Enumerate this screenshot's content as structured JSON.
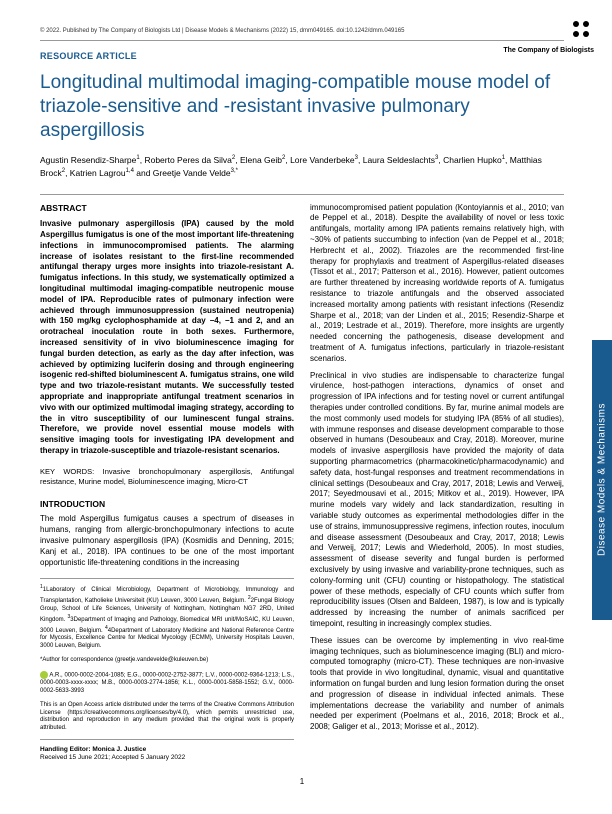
{
  "header": {
    "copyright": "© 2022. Published by The Company of Biologists Ltd | Disease Models & Mechanisms (2022) 15, dmm049165. doi:10.1242/dmm.049165",
    "publisher_name": "The Company of Biologists"
  },
  "article": {
    "section_label": "RESOURCE ARTICLE",
    "title": "Longitudinal multimodal imaging-compatible mouse model of triazole-sensitive and -resistant invasive pulmonary aspergillosis",
    "authors_html": "Agustin Resendiz-Sharpe<sup>1</sup>, Roberto Peres da Silva<sup>2</sup>, Elena Geib<sup>2</sup>, Lore Vanderbeke<sup>3</sup>, Laura Seldeslachts<sup>3</sup>, Charlien Hupko<sup>1</sup>, Matthias Brock<sup>2</sup>, Katrien Lagrou<sup>1,4</sup> and Greetje Vande Velde<sup>3,*</sup>"
  },
  "abstract": {
    "heading": "ABSTRACT",
    "body": "Invasive pulmonary aspergillosis (IPA) caused by the mold Aspergillus fumigatus is one of the most important life-threatening infections in immunocompromised patients. The alarming increase of isolates resistant to the first-line recommended antifungal therapy urges more insights into triazole-resistant A. fumigatus infections. In this study, we systematically optimized a longitudinal multimodal imaging-compatible neutropenic mouse model of IPA. Reproducible rates of pulmonary infection were achieved through immunosuppression (sustained neutropenia) with 150 mg/kg cyclophosphamide at day −4, −1 and 2, and an orotracheal inoculation route in both sexes. Furthermore, increased sensitivity of in vivo bioluminescence imaging for fungal burden detection, as early as the day after infection, was achieved by optimizing luciferin dosing and through engineering isogenic red-shifted bioluminescent A. fumigatus strains, one wild type and two triazole-resistant mutants. We successfully tested appropriate and inappropriate antifungal treatment scenarios in vivo with our optimized multimodal imaging strategy, according to the in vitro susceptibility of our luminescent fungal strains. Therefore, we provide novel essential mouse models with sensitive imaging tools for investigating IPA development and therapy in triazole-susceptible and triazole-resistant scenarios."
  },
  "keywords": {
    "label": "KEY WORDS:",
    "text": "Invasive bronchopulmonary aspergillosis, Antifungal resistance, Murine model, Bioluminescence imaging, Micro-CT"
  },
  "intro": {
    "heading": "INTRODUCTION",
    "p1": "The mold Aspergillus fumigatus causes a spectrum of diseases in humans, ranging from allergic-bronchopulmonary infections to acute invasive pulmonary aspergillosis (IPA) (Kosmidis and Denning, 2015; Kanj et al., 2018). IPA continues to be one of the most important opportunistic life-threatening conditions in the increasing"
  },
  "right_col": {
    "p1": "immunocompromised patient population (Kontoyiannis et al., 2010; van de Peppel et al., 2018). Despite the availability of novel or less toxic antifungals, mortality among IPA patients remains relatively high, with ~30% of patients succumbing to infection (van de Peppel et al., 2018; Herbrecht et al., 2002). Triazoles are the recommended first-line therapy for prophylaxis and treatment of Aspergillus-related diseases (Tissot et al., 2017; Patterson et al., 2016). However, patient outcomes are further threatened by increasing worldwide reports of A. fumigatus resistance to triazole antifungals and the observed associated increased mortality among patients with resistant infections (Resendiz Sharpe et al., 2018; van der Linden et al., 2015; Resendiz-Sharpe et al., 2019; Lestrade et al., 2019). Therefore, more insights are urgently needed concerning the pathogenesis, disease development and treatment of A. fumigatus infections, particularly in triazole-resistant scenarios.",
    "p2": "Preclinical in vivo studies are indispensable to characterize fungal virulence, host-pathogen interactions, dynamics of onset and progression of IPA infections and for testing novel or current antifungal therapies under controlled conditions. By far, murine animal models are the most commonly used models for studying IPA (85% of all studies), with immune responses and disease development comparable to those observed in humans (Desoubeaux and Cray, 2018). Moreover, murine models of invasive aspergillosis have provided the majority of data supporting pharmacometrics (pharmacokinetic/pharmacodynamic) and safety data, host-fungal responses and treatment recommendations in clinical settings (Desoubeaux and Cray, 2017, 2018; Lewis and Verweij, 2017; Seyedmousavi et al., 2015; Mitkov et al., 2019). However, IPA murine models vary widely and lack standardization, resulting in variable study outcomes as experimental methodologies differ in the use of strains, immunosuppressive regimens, infection routes, inoculum and disease assessment (Desoubeaux and Cray, 2017, 2018; Lewis and Verweij, 2017; Lewis and Wiederhold, 2005). In most studies, assessment of disease severity and fungal burden is performed exclusively by using invasive and variability-prone techniques, such as colony-forming unit (CFU) counting or histopathology. The statistical power of these methods, especially of CFU counts which suffer from reproducibility issues (Olsen and Baldeen, 1987), is low and is typically addressed by increasing the number of animals sacrificed per timepoint, resulting in increasingly complex studies.",
    "p3": "These issues can be overcome by implementing in vivo real-time imaging techniques, such as bioluminescence imaging (BLI) and micro-computed tomography (micro-CT). These techniques are non-invasive tools that provide in vivo longitudinal, dynamic, visual and quantitative information on fungal burden and lung lesion formation during the onset and progression of disease in individual infected animals. These implementations decrease the variability and number of animals needed per experiment (Poelmans et al., 2016, 2018; Brock et al., 2008; Galiger et al., 2013; Morisse et al., 2012)."
  },
  "footnotes": {
    "affil1": "1Laboratory of Clinical Microbiology, Department of Microbiology, Immunology and Transplantation, Katholieke Universiteit (KU) Leuven, 3000 Leuven, Belgium.",
    "affil2": "2Fungal Biology Group, School of Life Sciences, University of Nottingham, Nottingham NG7 2RD, United Kingdom.",
    "affil3": "3Department of Imaging and Pathology, Biomedical MRI unit/MoSAIC, KU Leuven, 3000 Leuven, Belgium.",
    "affil4": "4Department of Laboratory Medicine and National Reference Centre for Mycosis, Excellence Centre for Medical Mycology (ECMM), University Hospitals Leuven, 3000 Leuven, Belgium.",
    "corresp": "*Author for correspondence (greetje.vandevelde@kuleuven.be)",
    "orcid": "A.R., 0000-0002-2004-1085; E.G., 0000-0002-2752-3877; L.V., 0000-0002-9364-1213; L.S., 0000-0003-xxxx-xxxx; M.B., 0000-0003-2774-1856; K.L., 0000-0001-5858-1552; G.V., 0000-0002-5633-3993",
    "license": "This is an Open Access article distributed under the terms of the Creative Commons Attribution License (https://creativecommons.org/licenses/by/4.0), which permits unrestricted use, distribution and reproduction in any medium provided that the original work is properly attributed.",
    "handling_label": "Handling Editor: Monica J. Justice",
    "dates": "Received 15 June 2021; Accepted 5 January 2022"
  },
  "side_tab": "Disease Models & Mechanisms",
  "page_number": "1",
  "colors": {
    "brand": "#1a5b8f",
    "text": "#000000",
    "rule": "#999999",
    "orcid": "#a6ce39"
  }
}
